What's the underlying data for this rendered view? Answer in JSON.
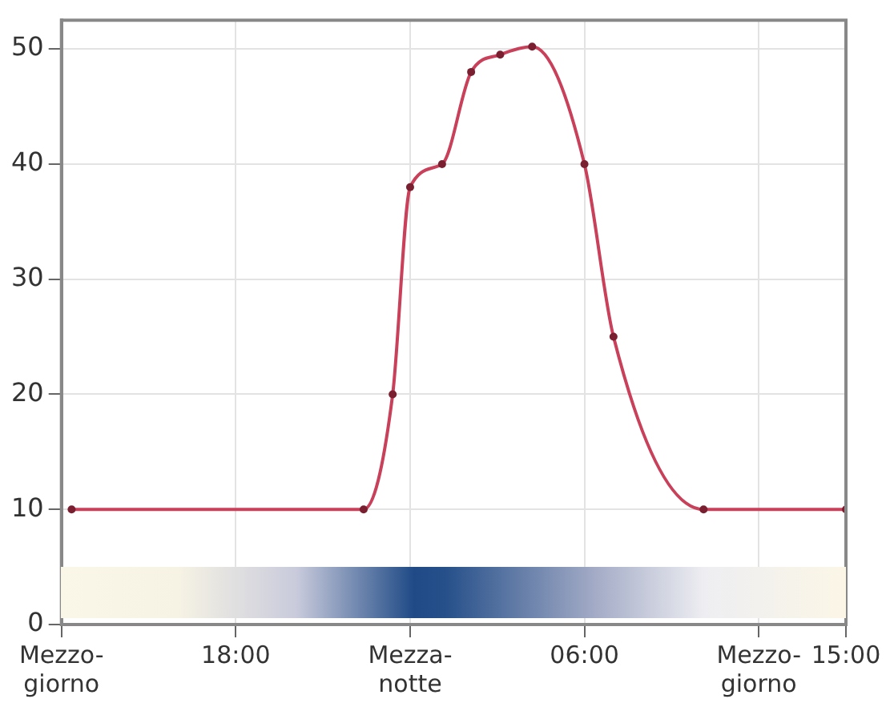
{
  "chart_data": {
    "type": "line",
    "x": [
      "2000-01-01T12:21",
      "2000-01-01T22:24",
      "2000-01-01T23:24",
      "2000-01-02T00:00",
      "2000-01-02T01:06",
      "2000-01-02T02:06",
      "2000-01-02T03:06",
      "2000-01-02T04:12",
      "2000-01-02T06:00",
      "2000-01-02T07:00",
      "2000-01-02T10:06",
      "2000-01-02T15:00"
    ],
    "series": [
      {
        "color": "#c8405a",
        "values": [
          10,
          10,
          20,
          38,
          40,
          48,
          49.5,
          50.2,
          40,
          25,
          10,
          10
        ]
      }
    ],
    "xlim": [
      "2000-01-01T12:00",
      "2000-01-02T15:00"
    ],
    "ylim": [
      0,
      52.5
    ],
    "xticks": [
      {
        "value": "2000-01-01T12:00",
        "label": "Mezzo-\ngiorno"
      },
      {
        "value": "2000-01-01T18:00",
        "label": "18:00"
      },
      {
        "value": "2000-01-02T00:00",
        "label": "Mezza-\nnotte"
      },
      {
        "value": "2000-01-02T06:00",
        "label": "06:00"
      },
      {
        "value": "2000-01-02T12:00",
        "label": "Mezzo-\ngiorno"
      },
      {
        "value": "2000-01-02T15:00",
        "label": "15:00"
      }
    ],
    "yticks": [
      0,
      10,
      20,
      30,
      40,
      50
    ],
    "grid": true,
    "legend": false,
    "marker": "circle",
    "line_style": "solid"
  }
}
